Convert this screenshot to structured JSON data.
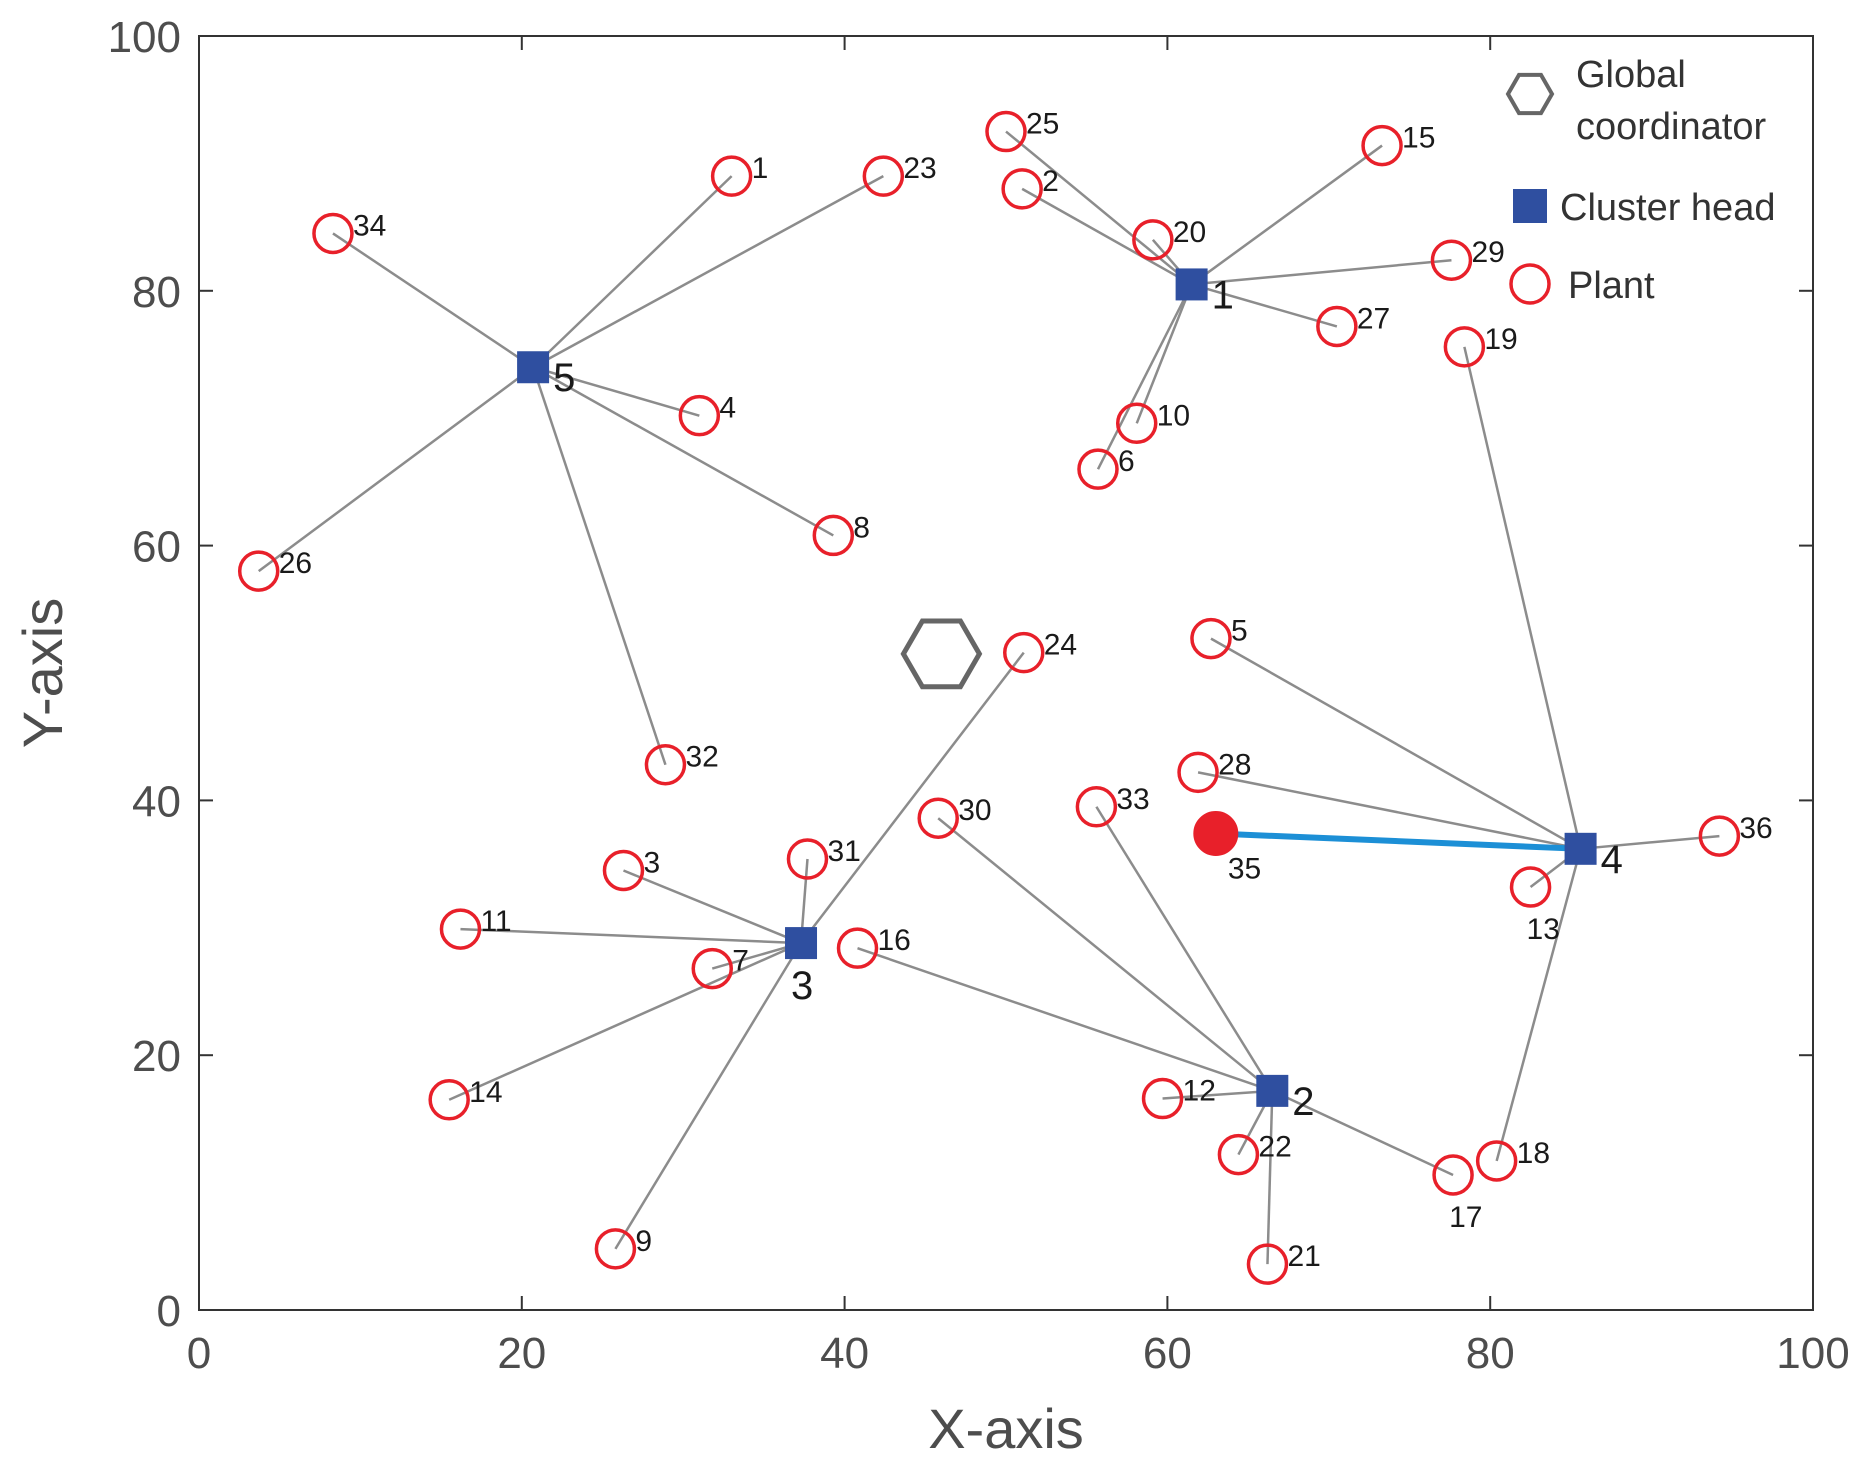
{
  "chart_data": {
    "type": "scatter",
    "xlabel": "X-axis",
    "ylabel": "Y-axis",
    "xlim": [
      0,
      100
    ],
    "ylim": [
      0,
      100
    ],
    "xticks": [
      0,
      20,
      40,
      60,
      80,
      100
    ],
    "yticks": [
      0,
      20,
      40,
      60,
      80,
      100
    ],
    "grid": false,
    "legend": {
      "position": "top-right",
      "entries": [
        {
          "marker": "hexagon",
          "lines": [
            "Global",
            "coordinator"
          ]
        },
        {
          "marker": "square",
          "lines": [
            "Cluster head"
          ]
        },
        {
          "marker": "circle",
          "lines": [
            "Plant"
          ]
        }
      ]
    },
    "colors": {
      "plant": "#e8202a",
      "cluster_head": "#2f4fa0",
      "link": "#8c8c8c",
      "highlight_link": "#1c8fd6",
      "coordinator": "#666666",
      "axis": "#333333"
    },
    "global_coordinator": {
      "x": 46,
      "y": 51.5
    },
    "cluster_heads": [
      {
        "id": "1",
        "x": 61.5,
        "y": 80.5
      },
      {
        "id": "2",
        "x": 66.5,
        "y": 17.2
      },
      {
        "id": "3",
        "x": 37.3,
        "y": 28.8
      },
      {
        "id": "4",
        "x": 85.6,
        "y": 36.2
      },
      {
        "id": "5",
        "x": 20.7,
        "y": 74.0
      }
    ],
    "plants": [
      {
        "id": "1",
        "x": 33.0,
        "y": 89.0,
        "head": "5"
      },
      {
        "id": "2",
        "x": 51.0,
        "y": 88.0,
        "head": "1"
      },
      {
        "id": "3",
        "x": 26.3,
        "y": 34.5,
        "head": "3"
      },
      {
        "id": "4",
        "x": 31.0,
        "y": 70.2,
        "head": "5"
      },
      {
        "id": "5",
        "x": 62.7,
        "y": 52.7,
        "head": "4"
      },
      {
        "id": "6",
        "x": 55.7,
        "y": 66.0,
        "head": "1"
      },
      {
        "id": "7",
        "x": 31.8,
        "y": 26.8,
        "head": "3"
      },
      {
        "id": "8",
        "x": 39.3,
        "y": 60.8,
        "head": "5"
      },
      {
        "id": "9",
        "x": 25.8,
        "y": 4.8,
        "head": "3"
      },
      {
        "id": "10",
        "x": 58.1,
        "y": 69.6,
        "head": "1"
      },
      {
        "id": "11",
        "x": 16.2,
        "y": 29.9,
        "head": "3"
      },
      {
        "id": "12",
        "x": 59.7,
        "y": 16.6,
        "head": "2"
      },
      {
        "id": "13",
        "x": 82.5,
        "y": 33.2,
        "head": "4"
      },
      {
        "id": "14",
        "x": 15.5,
        "y": 16.5,
        "head": "3"
      },
      {
        "id": "15",
        "x": 73.3,
        "y": 91.4,
        "head": "1"
      },
      {
        "id": "16",
        "x": 40.8,
        "y": 28.4,
        "head": "2"
      },
      {
        "id": "17",
        "x": 77.7,
        "y": 10.6,
        "head": "2"
      },
      {
        "id": "18",
        "x": 80.4,
        "y": 11.7,
        "head": "4"
      },
      {
        "id": "19",
        "x": 78.4,
        "y": 75.6,
        "head": "4"
      },
      {
        "id": "20",
        "x": 59.1,
        "y": 84.0,
        "head": "1"
      },
      {
        "id": "21",
        "x": 66.2,
        "y": 3.6,
        "head": "2"
      },
      {
        "id": "22",
        "x": 64.4,
        "y": 12.2,
        "head": "2"
      },
      {
        "id": "23",
        "x": 42.4,
        "y": 89.0,
        "head": "5"
      },
      {
        "id": "24",
        "x": 51.1,
        "y": 51.6,
        "head": "3"
      },
      {
        "id": "25",
        "x": 50.0,
        "y": 92.5,
        "head": "1"
      },
      {
        "id": "26",
        "x": 3.7,
        "y": 58.0,
        "head": "5"
      },
      {
        "id": "27",
        "x": 70.5,
        "y": 77.2,
        "head": "1"
      },
      {
        "id": "28",
        "x": 61.9,
        "y": 42.2,
        "head": "4"
      },
      {
        "id": "29",
        "x": 77.6,
        "y": 82.4,
        "head": "1"
      },
      {
        "id": "30",
        "x": 45.8,
        "y": 38.6,
        "head": "2"
      },
      {
        "id": "31",
        "x": 37.7,
        "y": 35.4,
        "head": "3"
      },
      {
        "id": "32",
        "x": 28.9,
        "y": 42.8,
        "head": "5"
      },
      {
        "id": "33",
        "x": 55.6,
        "y": 39.5,
        "head": "2"
      },
      {
        "id": "34",
        "x": 8.3,
        "y": 84.5,
        "head": "5"
      },
      {
        "id": "35",
        "x": 63.0,
        "y": 37.4,
        "head": "4",
        "highlighted": true
      },
      {
        "id": "36",
        "x": 94.2,
        "y": 37.2,
        "head": "4"
      }
    ]
  }
}
